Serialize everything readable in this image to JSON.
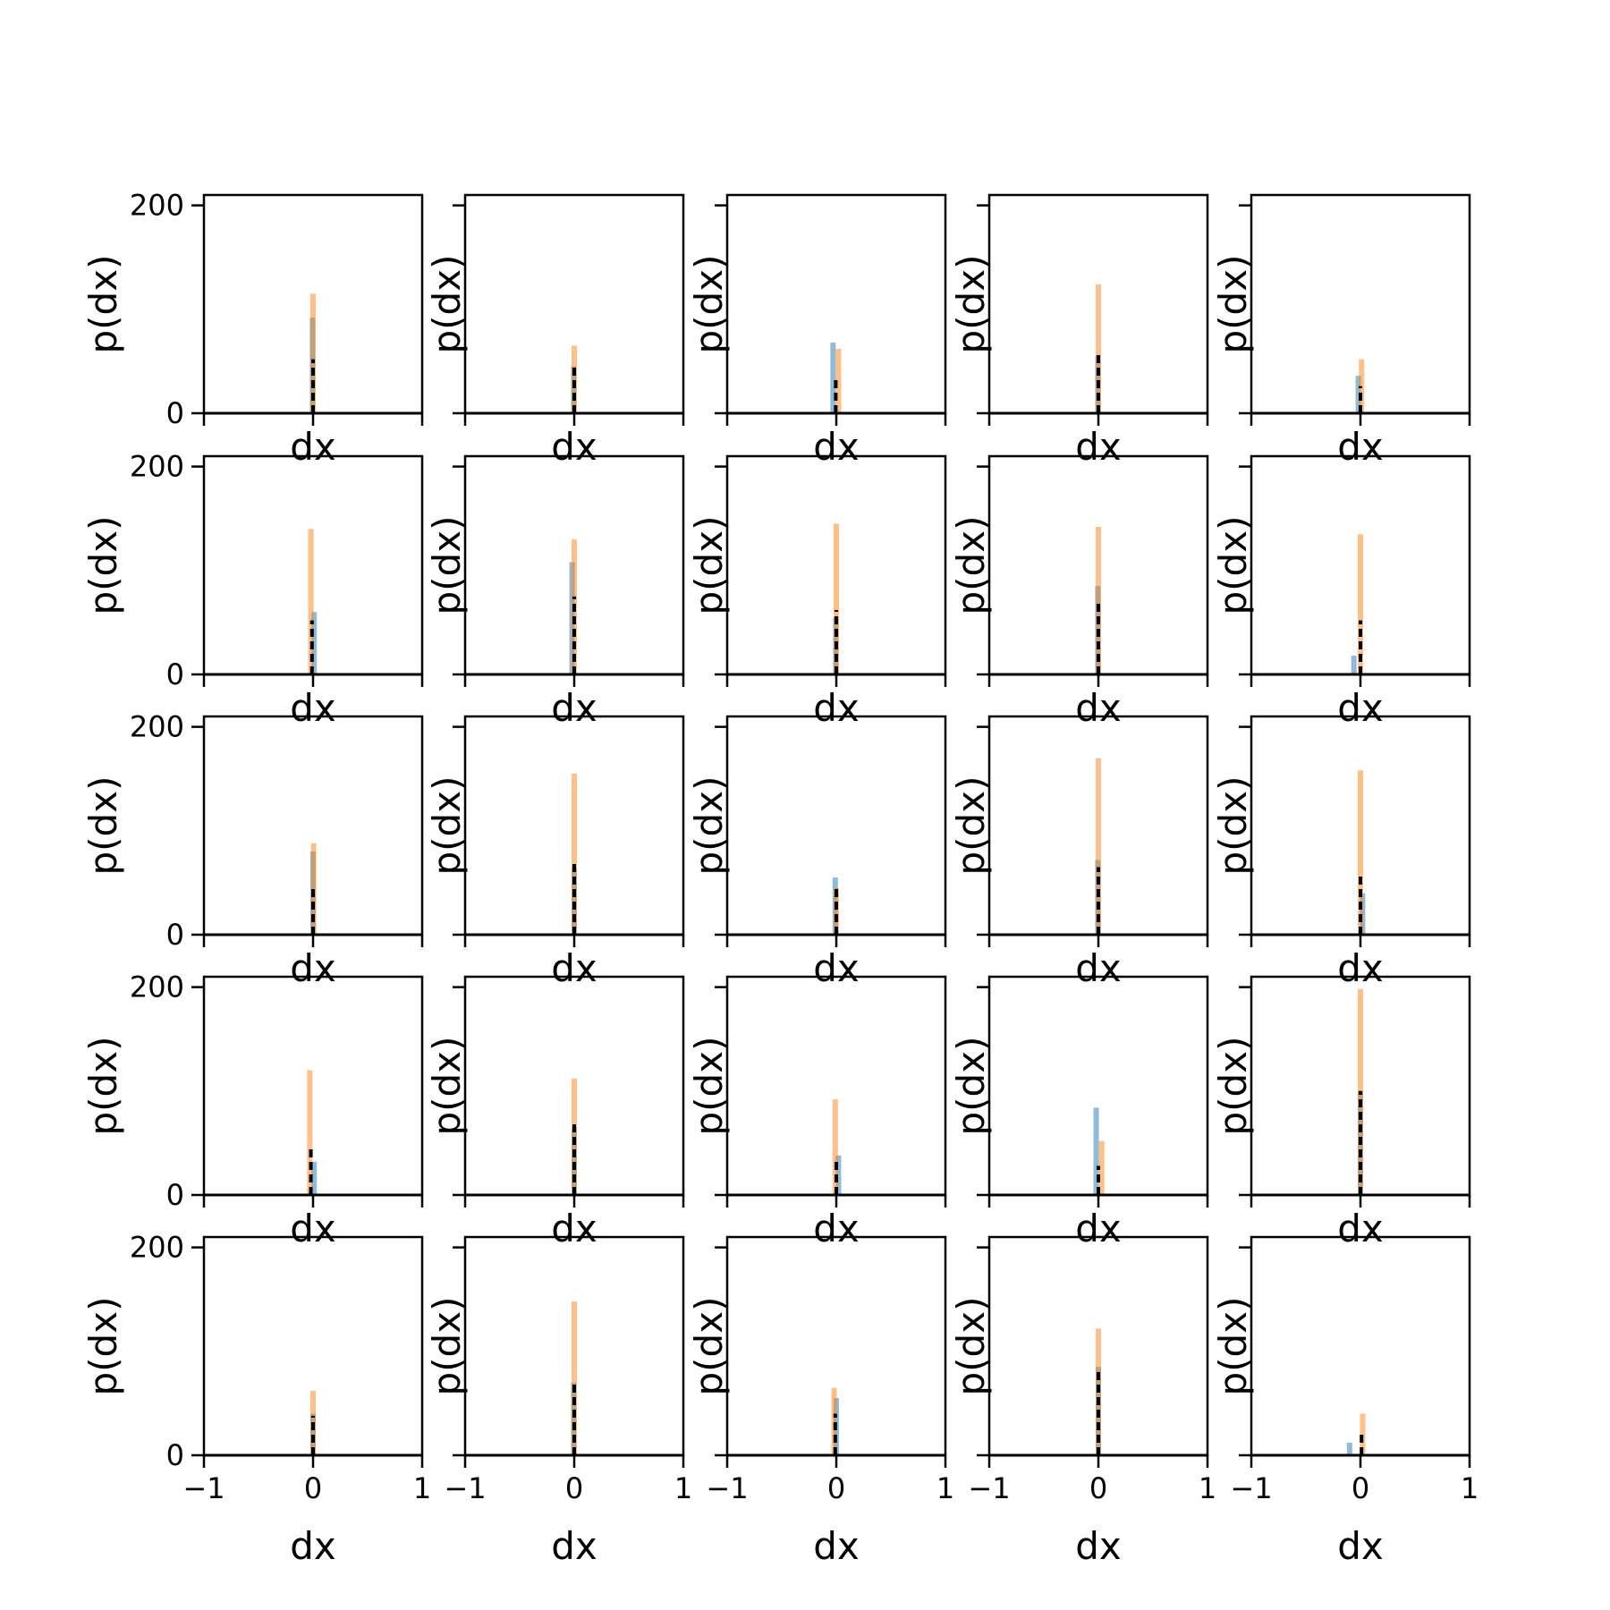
{
  "chart_data": {
    "type": "histogram-grid",
    "rows": 5,
    "cols": 5,
    "xlim": [
      -1,
      1
    ],
    "ylim": [
      0,
      210
    ],
    "x_ticks": [
      -1,
      0,
      1
    ],
    "x_tick_labels": [
      "−1",
      "0",
      "1"
    ],
    "y_ticks": [
      0,
      200
    ],
    "y_tick_labels": [
      "0",
      "200"
    ],
    "xlabel": "dx",
    "ylabel": "p(dx)",
    "colors": {
      "blue": "#1f77b4",
      "orange": "#ff7f0e",
      "black": "#000000"
    },
    "panels": [
      {
        "blue": [
          {
            "x": -0.005,
            "y": 92
          }
        ],
        "orange": [
          {
            "x": 0.0,
            "y": 115
          }
        ],
        "black": [
          {
            "x": 0.0,
            "y": 52
          }
        ]
      },
      {
        "blue": [
          {
            "x": -0.005,
            "y": 45
          }
        ],
        "orange": [
          {
            "x": 0.0,
            "y": 65
          }
        ],
        "black": [
          {
            "x": 0.0,
            "y": 48
          }
        ]
      },
      {
        "blue": [
          {
            "x": -0.03,
            "y": 68
          }
        ],
        "orange": [
          {
            "x": 0.02,
            "y": 62
          }
        ],
        "black": [
          {
            "x": -0.005,
            "y": 32
          }
        ]
      },
      {
        "blue": [
          {
            "x": -0.005,
            "y": 55
          }
        ],
        "orange": [
          {
            "x": 0.0,
            "y": 124
          }
        ],
        "black": [
          {
            "x": 0.0,
            "y": 56
          }
        ]
      },
      {
        "blue": [
          {
            "x": -0.02,
            "y": 36
          }
        ],
        "orange": [
          {
            "x": 0.01,
            "y": 52
          }
        ],
        "black": [
          {
            "x": 0.0,
            "y": 26
          }
        ]
      },
      {
        "blue": [
          {
            "x": 0.01,
            "y": 60
          }
        ],
        "orange": [
          {
            "x": -0.02,
            "y": 140
          }
        ],
        "black": [
          {
            "x": -0.01,
            "y": 52
          }
        ]
      },
      {
        "blue": [
          {
            "x": -0.02,
            "y": 108
          }
        ],
        "orange": [
          {
            "x": 0.0,
            "y": 130
          }
        ],
        "black": [
          {
            "x": 0.0,
            "y": 75
          }
        ]
      },
      {
        "blue": [
          {
            "x": -0.005,
            "y": 55
          }
        ],
        "orange": [
          {
            "x": 0.0,
            "y": 145
          }
        ],
        "black": [
          {
            "x": 0.0,
            "y": 62
          }
        ]
      },
      {
        "blue": [
          {
            "x": -0.005,
            "y": 85
          }
        ],
        "orange": [
          {
            "x": 0.0,
            "y": 142
          }
        ],
        "black": [
          {
            "x": 0.0,
            "y": 72
          }
        ]
      },
      {
        "blue": [
          {
            "x": -0.06,
            "y": 18
          }
        ],
        "orange": [
          {
            "x": 0.0,
            "y": 135
          }
        ],
        "black": [
          {
            "x": 0.0,
            "y": 52
          }
        ]
      },
      {
        "blue": [
          {
            "x": 0.0,
            "y": 80
          }
        ],
        "orange": [
          {
            "x": 0.005,
            "y": 88
          }
        ],
        "black": [
          {
            "x": 0.0,
            "y": 48
          }
        ]
      },
      {
        "blue": [
          {
            "x": 0.0,
            "y": 65
          }
        ],
        "orange": [
          {
            "x": 0.0,
            "y": 155
          }
        ],
        "black": [
          {
            "x": 0.0,
            "y": 68
          }
        ]
      },
      {
        "blue": [
          {
            "x": -0.01,
            "y": 55
          }
        ],
        "orange": [
          {
            "x": 0.0,
            "y": 45
          }
        ],
        "black": [
          {
            "x": 0.0,
            "y": 48
          }
        ]
      },
      {
        "blue": [
          {
            "x": -0.005,
            "y": 72
          }
        ],
        "orange": [
          {
            "x": 0.0,
            "y": 170
          }
        ],
        "black": [
          {
            "x": 0.0,
            "y": 65
          }
        ]
      },
      {
        "blue": [
          {
            "x": 0.02,
            "y": 40
          }
        ],
        "orange": [
          {
            "x": 0.0,
            "y": 158
          }
        ],
        "black": [
          {
            "x": 0.0,
            "y": 60
          }
        ]
      },
      {
        "blue": [
          {
            "x": 0.01,
            "y": 32
          }
        ],
        "orange": [
          {
            "x": -0.03,
            "y": 120
          }
        ],
        "black": [
          {
            "x": -0.02,
            "y": 45
          }
        ]
      },
      {
        "blue": [
          {
            "x": 0.0,
            "y": 65
          }
        ],
        "orange": [
          {
            "x": 0.0,
            "y": 112
          }
        ],
        "black": [
          {
            "x": 0.0,
            "y": 70
          }
        ]
      },
      {
        "blue": [
          {
            "x": 0.02,
            "y": 38
          }
        ],
        "orange": [
          {
            "x": -0.01,
            "y": 92
          }
        ],
        "black": [
          {
            "x": 0.0,
            "y": 35
          }
        ]
      },
      {
        "blue": [
          {
            "x": -0.02,
            "y": 84
          }
        ],
        "orange": [
          {
            "x": 0.03,
            "y": 52
          }
        ],
        "black": [
          {
            "x": 0.0,
            "y": 28
          }
        ]
      },
      {
        "blue": [
          {
            "x": 0.0,
            "y": 100
          }
        ],
        "orange": [
          {
            "x": 0.0,
            "y": 198
          }
        ],
        "black": [
          {
            "x": 0.0,
            "y": 100
          }
        ]
      },
      {
        "blue": [
          {
            "x": 0.0,
            "y": 40
          }
        ],
        "orange": [
          {
            "x": 0.0,
            "y": 62
          }
        ],
        "black": [
          {
            "x": 0.0,
            "y": 38
          }
        ]
      },
      {
        "blue": [
          {
            "x": -0.005,
            "y": 70
          }
        ],
        "orange": [
          {
            "x": 0.0,
            "y": 148
          }
        ],
        "black": [
          {
            "x": 0.0,
            "y": 72
          }
        ]
      },
      {
        "blue": [
          {
            "x": 0.0,
            "y": 55
          }
        ],
        "orange": [
          {
            "x": -0.02,
            "y": 65
          }
        ],
        "black": [
          {
            "x": -0.01,
            "y": 40
          }
        ]
      },
      {
        "blue": [
          {
            "x": 0.0,
            "y": 85
          }
        ],
        "orange": [
          {
            "x": 0.0,
            "y": 122
          }
        ],
        "black": [
          {
            "x": 0.0,
            "y": 80
          }
        ]
      },
      {
        "blue": [
          {
            "x": -0.1,
            "y": 12
          }
        ],
        "orange": [
          {
            "x": 0.02,
            "y": 40
          }
        ],
        "black": [
          {
            "x": 0.01,
            "y": 22
          }
        ]
      }
    ]
  }
}
